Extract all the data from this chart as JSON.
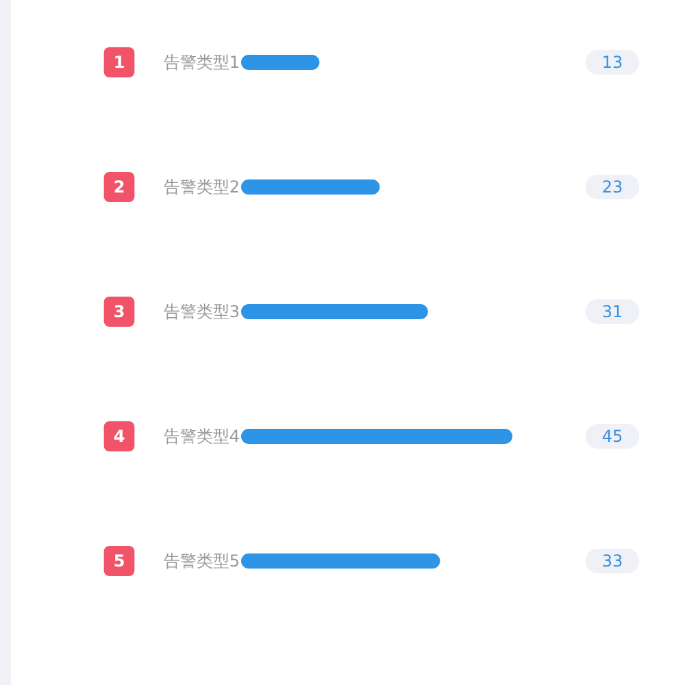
{
  "chart_data": {
    "type": "bar",
    "orientation": "horizontal",
    "categories": [
      "告警类型1",
      "告警类型2",
      "告警类型3",
      "告警类型4",
      "告警类型5"
    ],
    "values": [
      13,
      23,
      31,
      45,
      33
    ],
    "color": "#2d94e6",
    "data_labels": true,
    "annotations": [
      "1",
      "2",
      "3",
      "4",
      "5"
    ]
  }
}
